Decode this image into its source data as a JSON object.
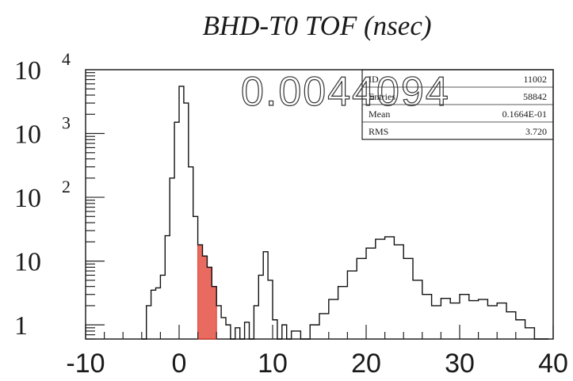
{
  "chart_data": {
    "type": "histogram",
    "title": "BHD-T0 TOF (nsec)",
    "overlay_value": "0.0044094",
    "xlim": [
      -10,
      40
    ],
    "ylim": [
      0.6,
      10000
    ],
    "y_scale": "log",
    "x_ticks": [
      "-10",
      "0",
      "10",
      "20",
      "30",
      "40"
    ],
    "y_ticks": [
      {
        "base": "1",
        "exp": "",
        "value": 1
      },
      {
        "base": "10",
        "exp": "",
        "value": 10
      },
      {
        "base": "10",
        "exp": "2",
        "value": 100
      },
      {
        "base": "10",
        "exp": "3",
        "value": 1000
      },
      {
        "base": "10",
        "exp": "4",
        "value": 10000
      }
    ],
    "stats": [
      {
        "label": "ID",
        "value": "11002"
      },
      {
        "label": "Entries",
        "value": "58842"
      },
      {
        "label": "Mean",
        "value": "0.1664E-01"
      },
      {
        "label": "RMS",
        "value": "3.720"
      }
    ],
    "shaded_region": {
      "x": [
        2.0,
        4.0
      ],
      "color": "#e23a2a"
    },
    "series": [
      {
        "points": [
          [
            -4.0,
            0.6
          ],
          [
            -3.5,
            2
          ],
          [
            -3.0,
            3.5
          ],
          [
            -2.5,
            3.8
          ],
          [
            -2.0,
            6
          ],
          [
            -1.5,
            25
          ],
          [
            -1.0,
            200
          ],
          [
            -0.5,
            1500
          ],
          [
            0.0,
            5500
          ],
          [
            0.5,
            3000
          ],
          [
            1.0,
            300
          ],
          [
            1.5,
            50
          ],
          [
            2.0,
            18
          ],
          [
            2.5,
            12
          ],
          [
            3.0,
            8
          ],
          [
            3.5,
            4
          ],
          [
            4.0,
            2
          ],
          [
            4.5,
            1.3
          ],
          [
            5.0,
            1
          ],
          [
            5.5,
            0.6
          ],
          [
            6.0,
            0.9
          ],
          [
            6.5,
            0.6
          ],
          [
            7.0,
            1.1
          ],
          [
            7.5,
            0.6
          ],
          [
            8.0,
            2
          ],
          [
            8.5,
            6
          ],
          [
            9.0,
            14
          ],
          [
            9.5,
            5
          ],
          [
            10.0,
            1.2
          ],
          [
            10.5,
            0.6
          ],
          [
            11.0,
            1
          ],
          [
            11.5,
            0.6
          ],
          [
            12.0,
            0.8
          ],
          [
            13.0,
            0.6
          ],
          [
            14.0,
            1
          ],
          [
            15.0,
            1.5
          ],
          [
            16.0,
            2.5
          ],
          [
            17.0,
            4
          ],
          [
            18.0,
            7
          ],
          [
            19.0,
            11
          ],
          [
            20.0,
            16
          ],
          [
            21.0,
            22
          ],
          [
            22.0,
            24
          ],
          [
            23.0,
            18
          ],
          [
            24.0,
            11
          ],
          [
            25.0,
            5
          ],
          [
            26.0,
            3
          ],
          [
            27.0,
            2
          ],
          [
            28.0,
            2.6
          ],
          [
            29.0,
            2.2
          ],
          [
            30.0,
            3
          ],
          [
            31.0,
            2.4
          ],
          [
            32.0,
            2.5
          ],
          [
            33.0,
            2
          ],
          [
            34.0,
            2.2
          ],
          [
            35.0,
            1.6
          ],
          [
            36.0,
            1.2
          ],
          [
            37.0,
            0.9
          ],
          [
            38.0,
            0.6
          ],
          [
            39.0,
            0.6
          ]
        ]
      }
    ]
  }
}
